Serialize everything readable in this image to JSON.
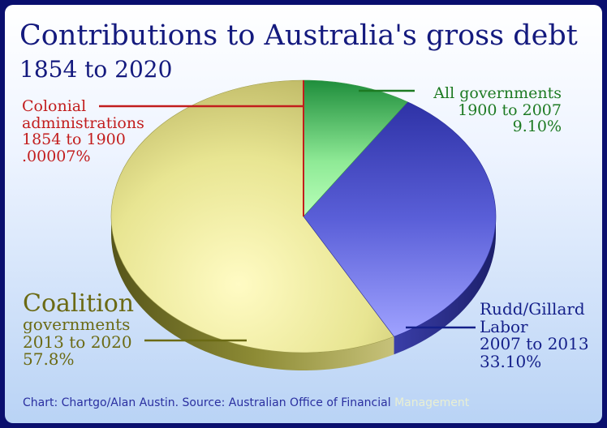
{
  "chart_data": {
    "type": "pie",
    "title": "Contributions to Australia's gross debt",
    "subtitle": "1854 to 2020",
    "slices": [
      {
        "key": "colonial",
        "lines": [
          "Colonial",
          "administrations",
          "1854 to 1900",
          ".00007%"
        ],
        "value": 7e-05,
        "color": "#c21d1d"
      },
      {
        "key": "allgov",
        "lines": [
          "All governments",
          "1900 to 2007",
          "9.10%"
        ],
        "value": 9.1,
        "color": "#1d7a22"
      },
      {
        "key": "labor",
        "lines": [
          "Rudd/Gillard",
          "Labor",
          "2007 to 2013",
          "33.10%"
        ],
        "value": 33.1,
        "color": "#15208a"
      },
      {
        "key": "coalition",
        "lines": [
          "Coalition",
          "governments",
          "2013 to 2020",
          "57.8%"
        ],
        "value": 57.8,
        "color": "#6b6a14"
      }
    ],
    "colors": {
      "allgov_fill": "#a6f2a6",
      "labor_fill": "#5a5fd8",
      "coalition_fill": "#ecea9a",
      "background": "#0a0f6e"
    }
  },
  "source": {
    "text": "Chart: Chartgo/Alan Austin. Source: Australian Office of Financial ",
    "faded": "Management"
  }
}
